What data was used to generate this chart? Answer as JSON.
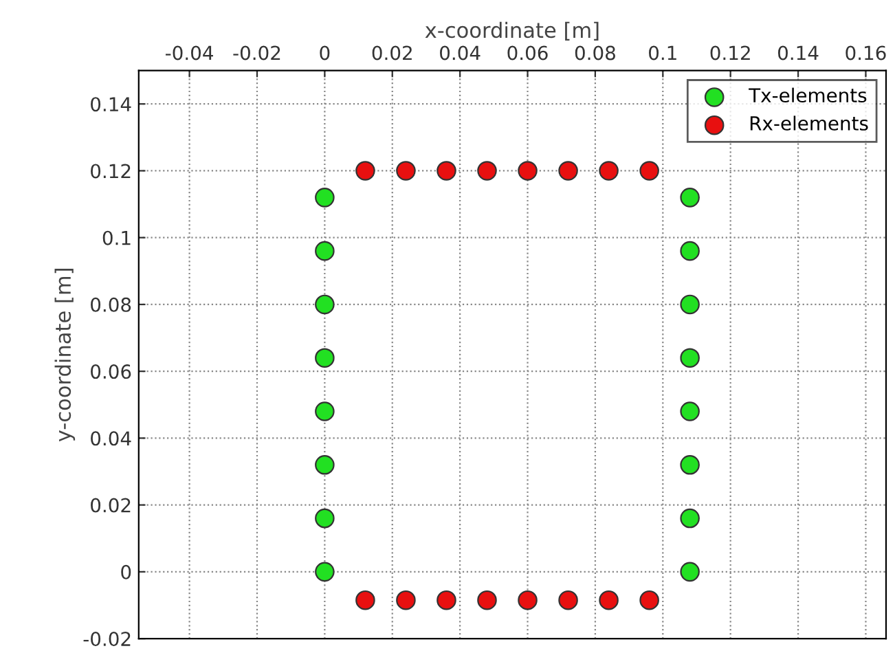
{
  "chart_data": {
    "type": "scatter",
    "xlabel": "x-coordinate [m]",
    "ylabel": "y-coordinate [m]",
    "series": [
      {
        "name": "Tx-elements",
        "color": "#22e022",
        "x": [
          0,
          0,
          0,
          0,
          0,
          0,
          0,
          0,
          0.108,
          0.108,
          0.108,
          0.108,
          0.108,
          0.108,
          0.108,
          0.108
        ],
        "values": [
          0,
          0.016,
          0.032,
          0.048,
          0.064,
          0.08,
          0.096,
          0.112,
          0,
          0.016,
          0.032,
          0.048,
          0.064,
          0.08,
          0.096,
          0.112
        ]
      },
      {
        "name": "Rx-elements",
        "color": "#e81010",
        "x": [
          0.012,
          0.024,
          0.036,
          0.048,
          0.06,
          0.072,
          0.084,
          0.096,
          0.012,
          0.024,
          0.036,
          0.048,
          0.06,
          0.072,
          0.084,
          0.096
        ],
        "values": [
          0.12,
          0.12,
          0.12,
          0.12,
          0.12,
          0.12,
          0.12,
          0.12,
          -0.0085,
          -0.0085,
          -0.0085,
          -0.0085,
          -0.0085,
          -0.0085,
          -0.0085,
          -0.0085
        ]
      }
    ],
    "xlim": [
      -0.055,
      0.166
    ],
    "ylim": [
      -0.02,
      0.15
    ],
    "xticks": [
      -0.04,
      -0.02,
      0,
      0.02,
      0.04,
      0.06,
      0.08,
      0.1,
      0.12,
      0.14,
      0.16
    ],
    "yticks": [
      -0.02,
      0,
      0.02,
      0.04,
      0.06,
      0.08,
      0.1,
      0.12,
      0.14
    ],
    "grid": true,
    "legend": "top right",
    "marker": "circle"
  }
}
